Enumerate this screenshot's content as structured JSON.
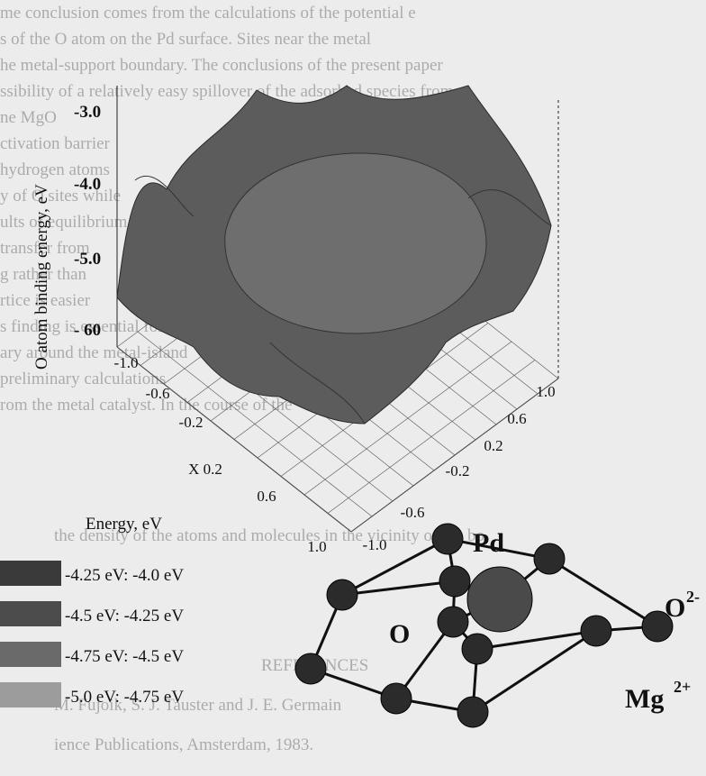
{
  "background_text": [
    "me conclusion comes from the calculations of the potential e",
    "s of the O atom on the Pd surface. Sites near the metal",
    "he metal-support boundary. The conclusions of the present paper",
    "ssibility of a relatively easy spillover of the adsorbed species from",
    "ne MgO",
    "ctivation barrier",
    "hydrogen atoms",
    "y of O sites while",
    "ults of equilibrium",
    "transfer from",
    "g rather than",
    "rtice is easier",
    "s finding is essential for",
    "ary around the metal-island",
    "preliminary calculations",
    "rom the metal catalyst. In the course of the",
    "the density of the atoms and molecules in the vicinity of the bo",
    "REFERENCES",
    "M. Fujoik, S. J. Tauster and J. E. Germain",
    "ience Publications, Amsterdam, 1983."
  ],
  "plot": {
    "axis_label": "O atom binding energy, eV",
    "z_ticks": [
      "-3.0",
      "-4.0",
      "-5.0",
      "- 60"
    ],
    "x_ticks": [
      "-1.0",
      "-0.6",
      "-0.2",
      "X 0.2",
      "0.6",
      "1.0"
    ],
    "y_ticks": [
      "1.0",
      "0.6",
      "0.2",
      "-0.2",
      "-0.6",
      "-1.0"
    ]
  },
  "legend": {
    "title": "Energy, eV",
    "entries": [
      "-4.25 eV: -4.0 eV",
      "-4.5 eV: -4.25 eV",
      "-4.75 eV: -4.5 eV",
      "-5.0 eV: -4.75 eV"
    ]
  },
  "structure": {
    "pd": "Pd",
    "o": "O",
    "o2": "O",
    "o2_sup": "2-",
    "mg": "Mg",
    "mg_sup": "2+"
  }
}
